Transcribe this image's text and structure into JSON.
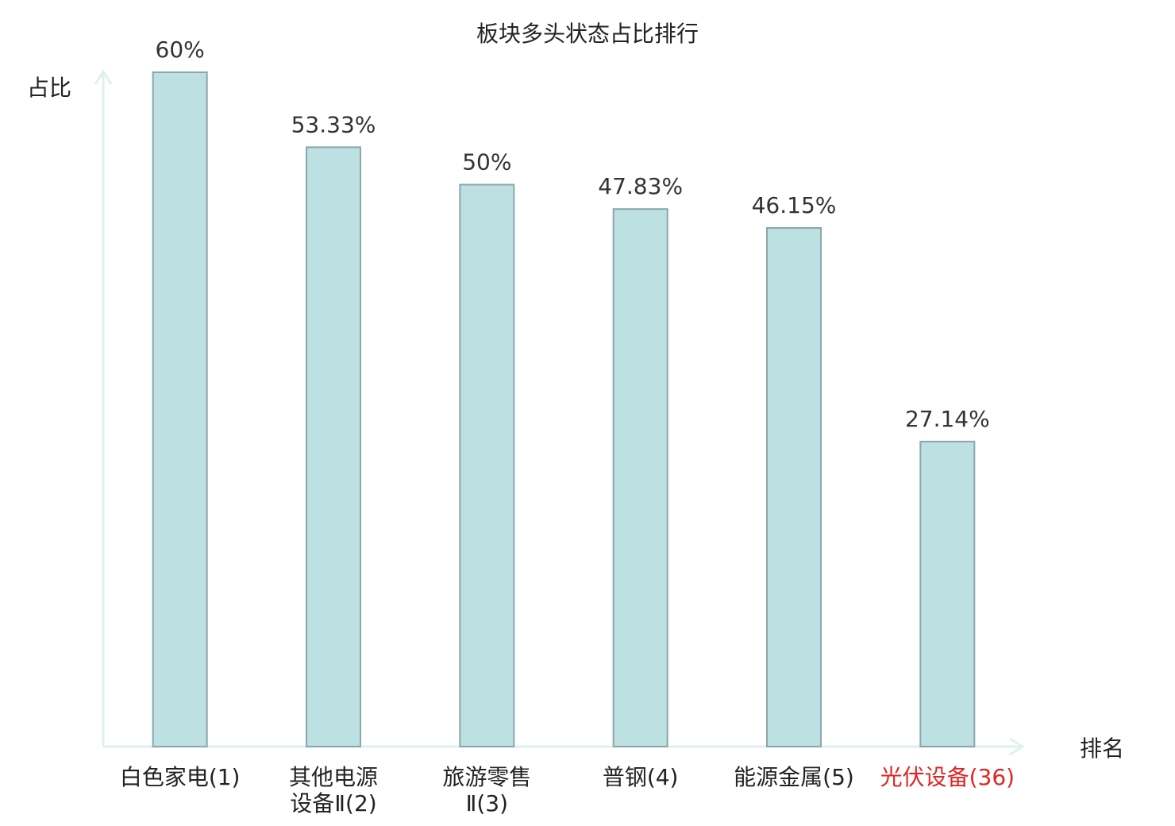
{
  "chart_data": {
    "type": "bar",
    "title": "板块多头状态占比排行",
    "y_label": "占比",
    "x_label": "排名",
    "categories": [
      "白色家电(1)",
      "其他电源\n设备Ⅱ(2)",
      "旅游零售\nⅡ(3)",
      "普钢(4)",
      "能源金属(5)",
      "光伏设备(36)"
    ],
    "category_colors": [
      "#222222",
      "#222222",
      "#222222",
      "#222222",
      "#222222",
      "#e02424"
    ],
    "values": [
      60,
      53.33,
      50,
      47.83,
      46.15,
      27.14
    ],
    "value_labels": [
      "60%",
      "53.33%",
      "50%",
      "47.83%",
      "46.15%",
      "27.14%"
    ],
    "color": "#bde0e2",
    "edge_color": "#8aa7aa",
    "axis_color": "#dff0ee",
    "ylim": [
      0,
      60
    ]
  }
}
